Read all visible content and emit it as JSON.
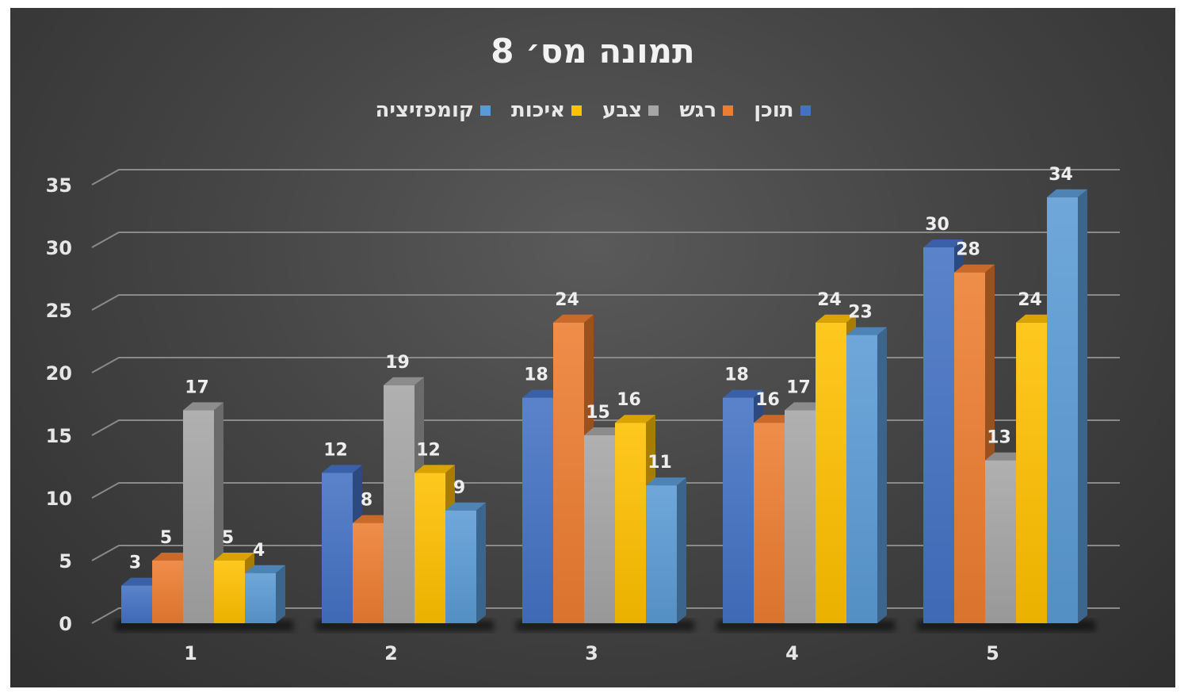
{
  "chart_data": {
    "type": "bar",
    "title": "תמונה מס׳ 8",
    "categories": [
      "1",
      "2",
      "3",
      "4",
      "5"
    ],
    "series": [
      {
        "name": "תוכן",
        "color": "#4472c4",
        "values": [
          3,
          12,
          18,
          18,
          30
        ]
      },
      {
        "name": "רגש",
        "color": "#ed7d31",
        "values": [
          5,
          8,
          24,
          16,
          28
        ]
      },
      {
        "name": "צבע",
        "color": "#a5a5a5",
        "values": [
          17,
          19,
          15,
          17,
          13
        ]
      },
      {
        "name": "איכות",
        "color": "#ffc000",
        "values": [
          5,
          12,
          16,
          24,
          24
        ]
      },
      {
        "name": "קומפזיציה",
        "color": "#5b9bd5",
        "values": [
          4,
          9,
          11,
          23,
          34
        ]
      }
    ],
    "ylim": [
      0,
      35
    ],
    "yticks": [
      "0",
      "5",
      "10",
      "15",
      "20",
      "25",
      "30",
      "35"
    ],
    "grid": true,
    "legend_position": "top"
  }
}
